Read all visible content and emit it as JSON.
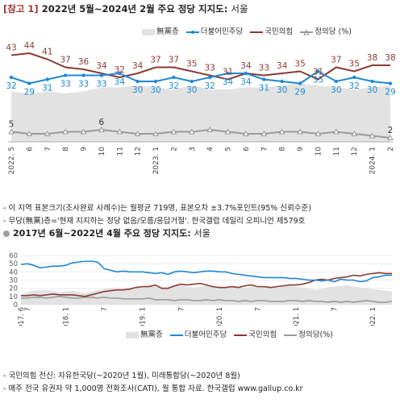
{
  "top": {
    "tag": "[참고 1]",
    "title": "2022년 5월~2024년 2월 주요 정당 지지도:",
    "region": "서울"
  },
  "legend": {
    "nopartisan": "無黨층",
    "democratic": "더불어민주당",
    "ppp": "국민의힘",
    "justice": "정의당 (%)"
  },
  "notes1": [
    "- 이 지역 표본크기(조사완료 사례수)는 월평균 719명, 표본오차 ±3.7%포인트(95% 신뢰수준)",
    "- 무당(無黨)층='현재 지지하는 정당 없음/모름/응답거절'. 한국갤럽 데일리 오피니언 제579호"
  ],
  "bottom": {
    "title": "2017년 6월~2022년 4월 주요 정당 지지도:",
    "region": "서울"
  },
  "legend2": {
    "nopartisan": "無黨층",
    "democratic": "더불어민주당",
    "ppp": "국민의힘",
    "justice": "정의당(%)"
  },
  "notes2": [
    "- 국민의힘 전신: 자유한국당(~2020년 1월), 미래통합당(~2020년 8월)",
    "- 매주 전국 유권자 약 1,000명 전화조사(CATI), 월 통합 자료. 한국갤럽 www.gallup.co.kr"
  ],
  "colors": {
    "democratic": "#1e88d6",
    "ppp": "#8b3a35",
    "justice": "#9a9a9a",
    "nopartisan": "#e2e2e2"
  },
  "chart_data": [
    {
      "type": "line",
      "title": "2022년 5월~2024년 2월 주요 정당 지지도: 서울",
      "x": [
        "2022.5",
        "6",
        "7",
        "8",
        "9",
        "10",
        "11",
        "12",
        "2023.1",
        "2",
        "3",
        "4",
        "5",
        "6",
        "7",
        "8",
        "9",
        "10",
        "11",
        "12",
        "2024.1",
        "2"
      ],
      "tick_labels": [
        "2022. 5",
        "6",
        "7",
        "8",
        "9",
        "10",
        "11",
        "12",
        "2023. 1",
        "2",
        "3",
        "4",
        "5",
        "6",
        "7",
        "8",
        "9",
        "10",
        "11",
        "12",
        "2024. 1",
        "2"
      ],
      "series": [
        {
          "name": "더불어민주당",
          "values": [
            32,
            29,
            31,
            33,
            33,
            33,
            34,
            30,
            30,
            32,
            30,
            32,
            34,
            34,
            31,
            30,
            29,
            35,
            30,
            32,
            30,
            29
          ],
          "labels": [
            "32",
            "29",
            "31",
            "33",
            "33",
            "33",
            "34",
            "30",
            "30",
            "32",
            "30",
            "32",
            "34",
            "34",
            "31",
            "30",
            "29",
            "35",
            "30",
            "32",
            "30",
            "29"
          ]
        },
        {
          "name": "국민의힘",
          "values": [
            43,
            44,
            41,
            37,
            36,
            34,
            32,
            34,
            37,
            37,
            35,
            33,
            31,
            34,
            33,
            34,
            35,
            31,
            37,
            35,
            38,
            38
          ],
          "labels": [
            "43",
            "44",
            "41",
            "37",
            "36",
            "34",
            "32",
            "34",
            "37",
            "37",
            "35",
            "33",
            "31",
            "34",
            "33",
            "34",
            "35",
            "31",
            "37",
            "35",
            "38",
            "38"
          ]
        },
        {
          "name": "정의당",
          "values": [
            5,
            4,
            4,
            5,
            5,
            6,
            5,
            4,
            4,
            5,
            5,
            6,
            5,
            4,
            4,
            5,
            5,
            4,
            5,
            4,
            3,
            2
          ],
          "labels": [
            "5",
            "",
            "",
            "",
            "",
            "6",
            "",
            "",
            "",
            "",
            "",
            "",
            "",
            "",
            "",
            "",
            "",
            "",
            "",
            "",
            "",
            "2"
          ]
        },
        {
          "name": "無黨층",
          "values": [
            25,
            24,
            25,
            24,
            25,
            27,
            27,
            28,
            27,
            26,
            28,
            26,
            26,
            27,
            27,
            28,
            29,
            28,
            27,
            26,
            27,
            28
          ]
        }
      ],
      "ylim": [
        0,
        48
      ],
      "legend": "top-right"
    },
    {
      "type": "line",
      "title": "2017년 6월~2022년 4월 주요 정당 지지도: 서울",
      "x_start": "2017.6",
      "tick_labels": [
        "2017. 6",
        "7",
        "2018. 1",
        "7",
        "2019. 1",
        "7",
        "2020. 1",
        "7",
        "2021. 1",
        "7",
        "2022. 1"
      ],
      "tick_months": [
        0,
        1,
        7,
        13,
        19,
        25,
        31,
        37,
        43,
        49,
        55
      ],
      "y_ticks": [
        0,
        10,
        20,
        30,
        40,
        50,
        60
      ],
      "ylim": [
        0,
        60
      ],
      "series": [
        {
          "name": "더불어민주당",
          "values": [
            49,
            50,
            48,
            45,
            46,
            47,
            47,
            48,
            51,
            52,
            53,
            53,
            52,
            44,
            42,
            40,
            41,
            40,
            40,
            40,
            39,
            38,
            39,
            37,
            40,
            41,
            40,
            39,
            40,
            41,
            41,
            40,
            40,
            38,
            37,
            36,
            35,
            34,
            33,
            33,
            33,
            33,
            32,
            32,
            31,
            30,
            30,
            29,
            30,
            28,
            31,
            30,
            30,
            28,
            29,
            33,
            34,
            36,
            36
          ]
        },
        {
          "name": "국민의힘",
          "values": [
            11,
            11,
            12,
            11,
            12,
            13,
            12,
            12,
            12,
            11,
            10,
            12,
            14,
            16,
            17,
            18,
            18,
            19,
            21,
            22,
            22,
            24,
            20,
            20,
            23,
            25,
            24,
            25,
            26,
            24,
            22,
            21,
            21,
            22,
            21,
            23,
            24,
            22,
            22,
            21,
            22,
            23,
            24,
            24,
            25,
            27,
            30,
            31,
            30,
            32,
            33,
            34,
            36,
            35,
            37,
            38,
            39,
            38,
            38
          ]
        },
        {
          "name": "정의당",
          "values": [
            8,
            8,
            9,
            9,
            8,
            9,
            10,
            9,
            8,
            8,
            9,
            9,
            8,
            9,
            8,
            8,
            7,
            7,
            7,
            7,
            8,
            6,
            6,
            6,
            5,
            6,
            6,
            5,
            5,
            6,
            5,
            6,
            5,
            5,
            4,
            5,
            4,
            5,
            5,
            4,
            4,
            4,
            5,
            5,
            4,
            5,
            4,
            4,
            3,
            4,
            3,
            4,
            3,
            4,
            5,
            4,
            3,
            3,
            4
          ]
        },
        {
          "name": "無黨층",
          "values": [
            13,
            15,
            17,
            18,
            18,
            17,
            15,
            16,
            17,
            16,
            14,
            16,
            18,
            19,
            20,
            20,
            21,
            20,
            22,
            23,
            24,
            22,
            21,
            20,
            23,
            24,
            22,
            21,
            22,
            23,
            22,
            21,
            22,
            23,
            22,
            20,
            22,
            21,
            23,
            22,
            21,
            22,
            23,
            22,
            21,
            20,
            18,
            19,
            21,
            22,
            23,
            24,
            22,
            21,
            20,
            19,
            18,
            17,
            16
          ]
        }
      ],
      "legend": "bottom"
    }
  ]
}
